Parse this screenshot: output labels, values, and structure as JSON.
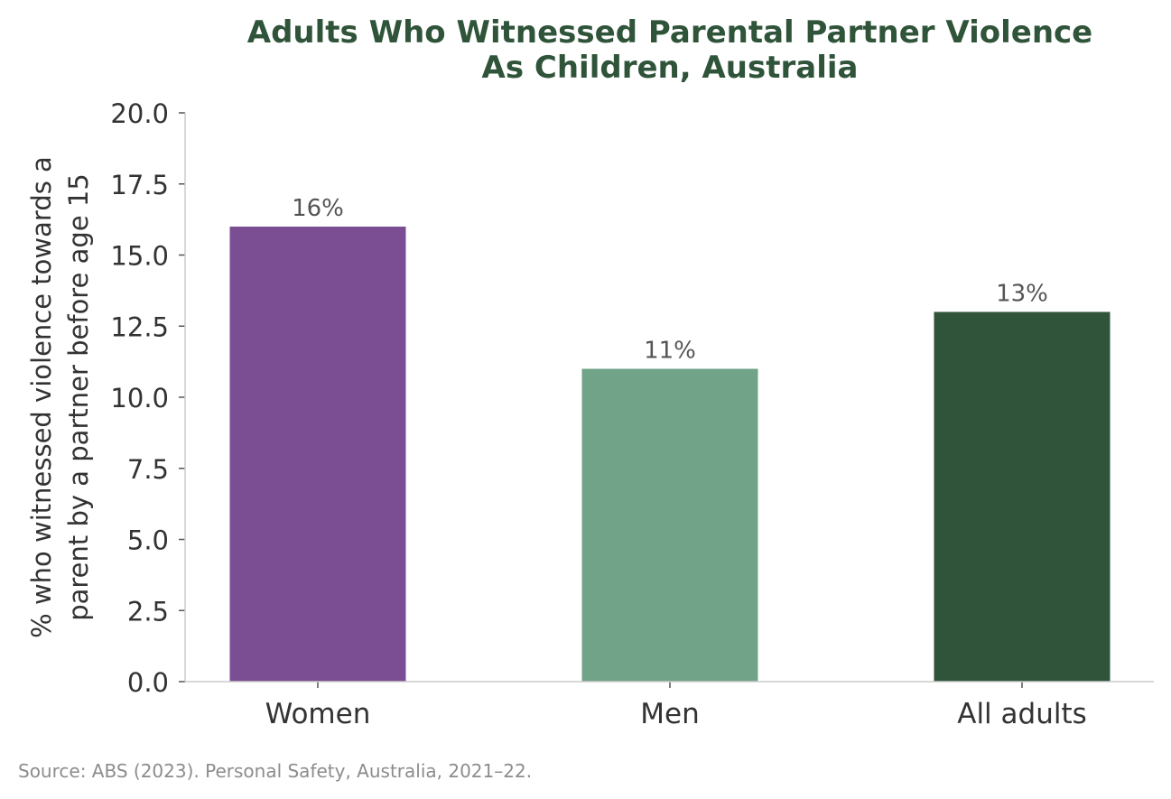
{
  "chart_data": {
    "type": "bar",
    "title_lines": [
      "Adults Who Witnessed Parental Partner Violence",
      "As Children, Australia"
    ],
    "ylabel_lines": [
      "% who witnessed violence towards a",
      "parent by a partner before age 15"
    ],
    "xlabel": "",
    "categories": [
      "Women",
      "Men",
      "All adults"
    ],
    "values": [
      16,
      11,
      13
    ],
    "data_labels": [
      "16%",
      "11%",
      "13%"
    ],
    "colors": [
      "#7b4d92",
      "#70a388",
      "#2f5439"
    ],
    "ylim": [
      0,
      20
    ],
    "yticks": [
      0,
      2.5,
      5,
      7.5,
      10,
      12.5,
      15,
      17.5,
      20
    ],
    "ytick_labels": [
      "0.0",
      "2.5",
      "5.0",
      "7.5",
      "10.0",
      "12.5",
      "15.0",
      "17.5",
      "20.0"
    ],
    "grid": false,
    "title_color": "#2f5439"
  },
  "source": "Source: ABS (2023). Personal Safety, Australia, 2021–22."
}
